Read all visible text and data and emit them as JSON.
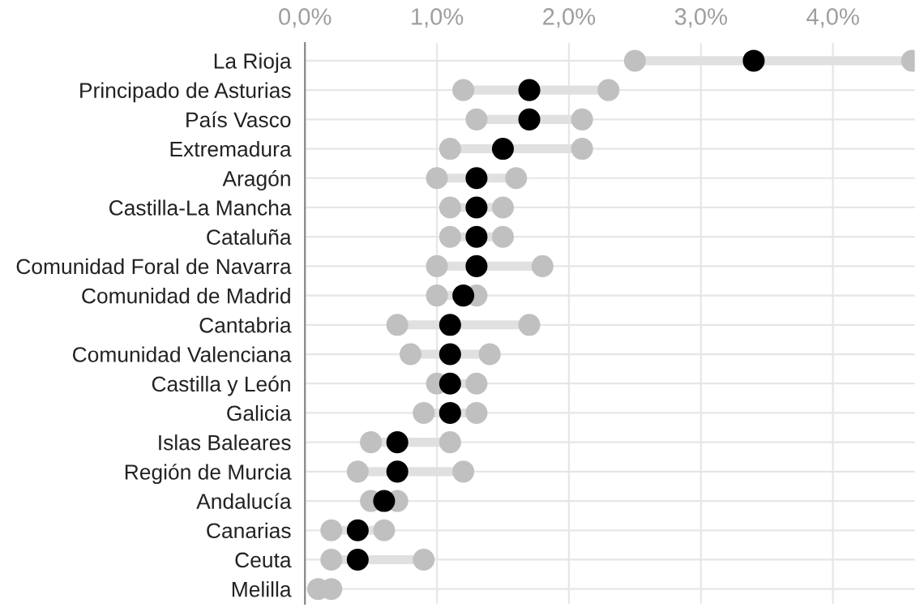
{
  "chart_data": {
    "type": "scatter",
    "orientation": "horizontal",
    "categories": [
      "La Rioja",
      "Principado de Asturias",
      "País Vasco",
      "Extremadura",
      "Aragón",
      "Castilla-La Mancha",
      "Cataluña",
      "Comunidad Foral de Navarra",
      "Comunidad de Madrid",
      "Cantabria",
      "Comunidad Valenciana",
      "Castilla y León",
      "Galicia",
      "Islas Baleares",
      "Región de Murcia",
      "Andalucía",
      "Canarias",
      "Ceuta",
      "Melilla"
    ],
    "series": [
      {
        "color": "#c0c0c0",
        "values": [
          2.5,
          1.2,
          1.3,
          1.1,
          1.0,
          1.1,
          1.1,
          1.0,
          1.0,
          0.7,
          0.8,
          1.0,
          0.9,
          0.5,
          0.4,
          0.5,
          0.2,
          0.2,
          0.1
        ]
      },
      {
        "color": "#c0c0c0",
        "values": [
          4.6,
          2.3,
          2.1,
          2.1,
          1.6,
          1.5,
          1.5,
          1.8,
          1.3,
          1.7,
          1.4,
          1.3,
          1.3,
          1.1,
          1.2,
          0.7,
          0.6,
          0.9,
          0.2
        ]
      },
      {
        "color": "#000000",
        "values": [
          3.4,
          1.7,
          1.7,
          1.5,
          1.3,
          1.3,
          1.3,
          1.3,
          1.2,
          1.1,
          1.1,
          1.1,
          1.1,
          0.7,
          0.7,
          0.6,
          0.4,
          0.4,
          null
        ]
      }
    ],
    "xlim": [
      0,
      4.62
    ],
    "xticks": [
      {
        "value": 0,
        "label": "0,0%"
      },
      {
        "value": 1,
        "label": "1,0%"
      },
      {
        "value": 2,
        "label": "2,0%"
      },
      {
        "value": 3,
        "label": "3,0%"
      },
      {
        "value": 4,
        "label": "4,0%"
      }
    ],
    "grid": true,
    "marker": "circle"
  }
}
